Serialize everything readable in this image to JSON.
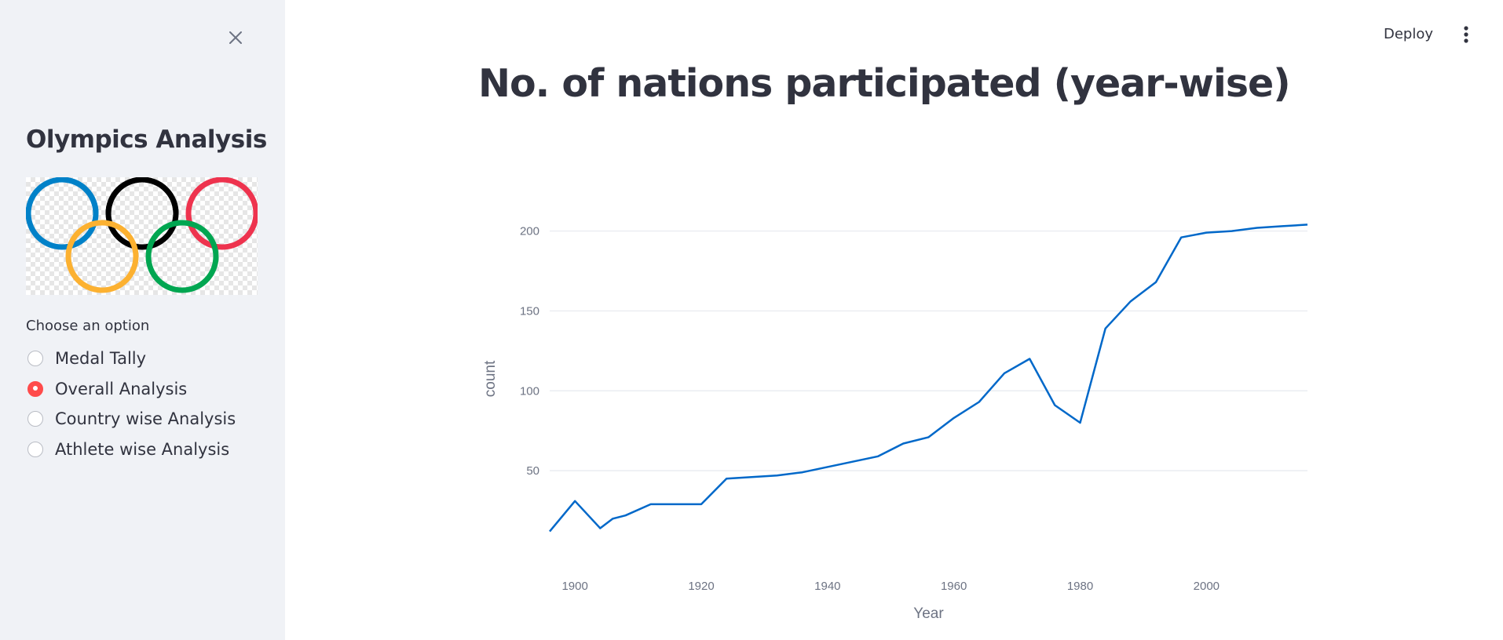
{
  "sidebar": {
    "title": "Olympics Analysis",
    "radio_label": "Choose an option",
    "options": [
      {
        "label": "Medal Tally",
        "selected": false
      },
      {
        "label": "Overall Analysis",
        "selected": true
      },
      {
        "label": "Country wise Analysis",
        "selected": false
      },
      {
        "label": "Athlete wise Analysis",
        "selected": false
      }
    ],
    "close_icon": "close-icon",
    "accent_color": "#ff4b4b"
  },
  "header": {
    "deploy_label": "Deploy",
    "menu_icon": "more-vertical-icon"
  },
  "main": {
    "title": "No. of nations participated (year-wise)"
  },
  "chart_data": {
    "type": "line",
    "title": "",
    "xlabel": "Year",
    "ylabel": "count",
    "xlim": [
      1896,
      2016
    ],
    "ylim": [
      0,
      215
    ],
    "xticks": [
      1900,
      1920,
      1940,
      1960,
      1980,
      2000
    ],
    "yticks": [
      50,
      100,
      150,
      200
    ],
    "grid": true,
    "line_color": "#0068c9",
    "series": [
      {
        "x": [
          1896,
          1900,
          1904,
          1906,
          1908,
          1912,
          1920,
          1924,
          1928,
          1932,
          1936,
          1948,
          1952,
          1956,
          1960,
          1964,
          1968,
          1972,
          1976,
          1980,
          1984,
          1988,
          1992,
          1996,
          2000,
          2004,
          2008,
          2012,
          2016
        ],
        "values": [
          12,
          31,
          14,
          20,
          22,
          29,
          29,
          45,
          46,
          47,
          49,
          59,
          67,
          71,
          83,
          93,
          111,
          120,
          91,
          80,
          139,
          156,
          168,
          196,
          199,
          200,
          202,
          203,
          204
        ]
      }
    ]
  }
}
